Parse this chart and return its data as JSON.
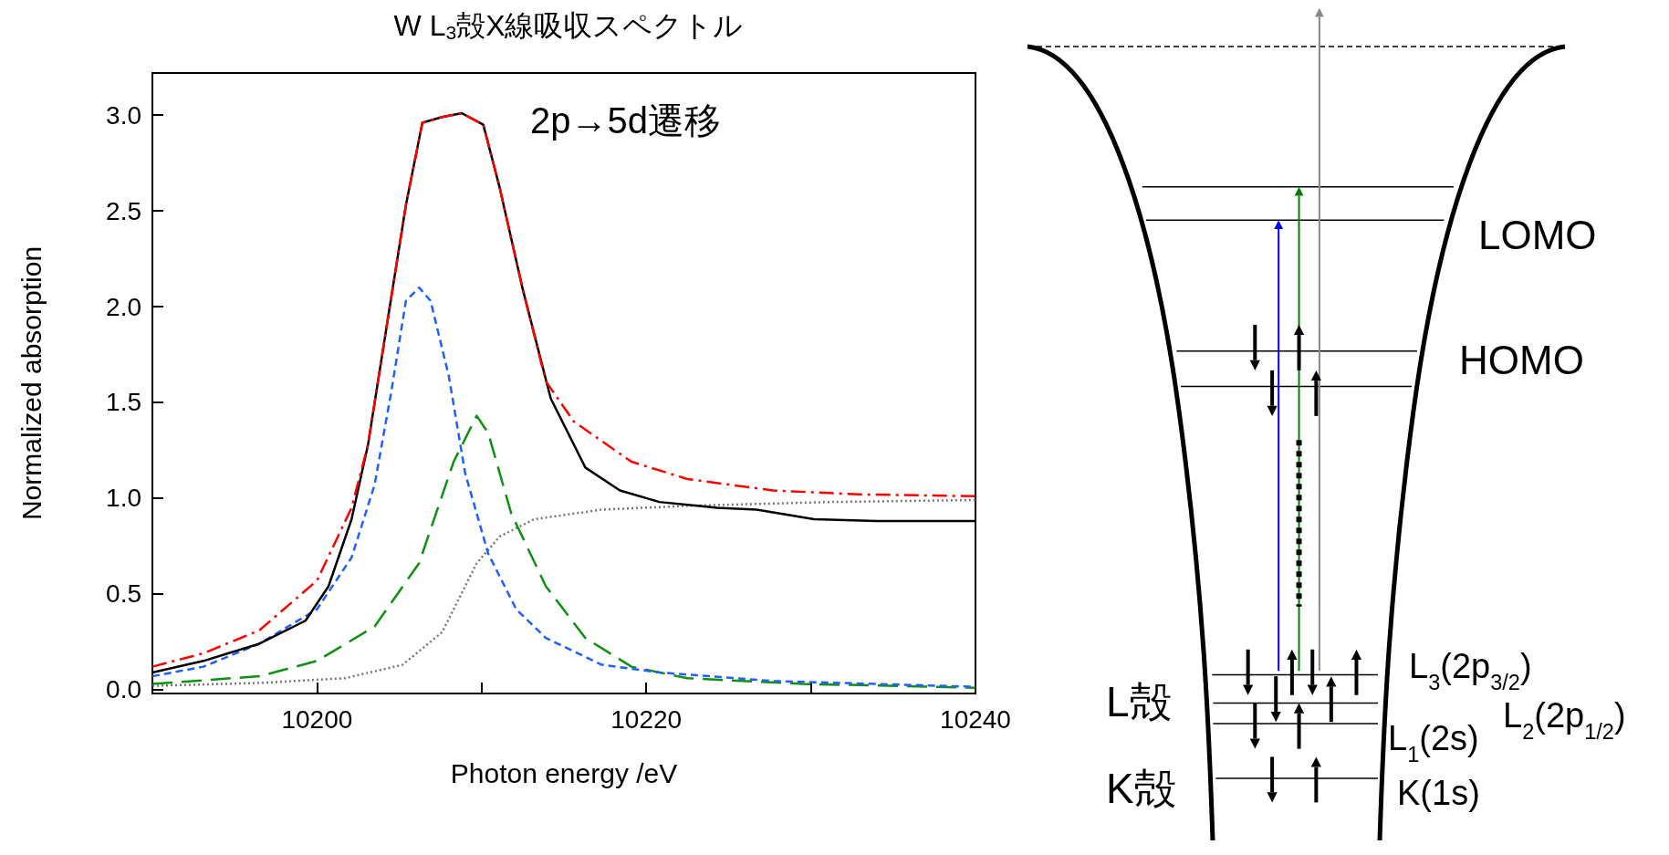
{
  "chart_data": {
    "type": "line",
    "title": "W L$_{3}$殻X線吸収スペクトル",
    "xlabel": "Photon energy /eV",
    "ylabel": "Normalized absorption",
    "xlim": [
      10190,
      10240
    ],
    "xticks": [
      10200,
      {
        "value": 10210,
        "label": null
      },
      10220,
      {
        "value": 10230,
        "label": null
      },
      10240
    ],
    "ylim": [
      -0.02,
      3.22
    ],
    "yticks": [
      {
        "value": 0,
        "label": "0.0"
      },
      0.5,
      {
        "value": 1,
        "label": "1.0"
      },
      1.5,
      {
        "value": 2,
        "label": "2.0"
      },
      2.5,
      {
        "value": 3,
        "label": "3.0"
      }
    ],
    "grid": false,
    "marker": "none",
    "annotations": [
      "2p→5d遷移",
      "LOMO",
      "HOMO",
      "L$_{3}$(2p$_{3/2}$)",
      "L$_{2}$(2p$_{1/2}$)",
      "L$_{1}$(2s)",
      "K(1s)",
      "L殻",
      "K殻"
    ],
    "series": [
      {
        "color": "#777777",
        "line_style": "dotted",
        "x": [
          10190.0,
          10196.5,
          10201.7,
          10205.2,
          10207.6,
          10209.7,
          10211.1,
          10213.2,
          10217.3,
          10222.5,
          10231.2,
          10240
        ],
        "values": [
          0.02,
          0.035,
          0.06,
          0.13,
          0.3,
          0.66,
          0.8,
          0.89,
          0.94,
          0.96,
          0.98,
          0.99
        ]
      },
      {
        "color": "#109010",
        "line_style": "longdash",
        "x": [
          10190.0,
          10196.5,
          10200.0,
          10203.5,
          10206.2,
          10208.3,
          10209.7,
          10210.4,
          10211.8,
          10213.9,
          10216.3,
          10219.1,
          10222.5,
          10229.5,
          10240
        ],
        "values": [
          0.03,
          0.07,
          0.15,
          0.33,
          0.66,
          1.19,
          1.43,
          1.34,
          0.92,
          0.54,
          0.27,
          0.12,
          0.06,
          0.03,
          0.01
        ]
      },
      {
        "color": "#2060ff",
        "line_style": "dashed",
        "x": [
          10190.0,
          10193.1,
          10196.5,
          10200.0,
          10202.1,
          10203.5,
          10204.5,
          10205.4,
          10206.2,
          10206.9,
          10208.0,
          10209.0,
          10210.4,
          10212.1,
          10213.9,
          10217.3,
          10220.8,
          10227.7,
          10240
        ],
        "values": [
          0.07,
          0.12,
          0.24,
          0.42,
          0.69,
          1.07,
          1.55,
          2.03,
          2.1,
          2.03,
          1.64,
          1.13,
          0.71,
          0.42,
          0.27,
          0.13,
          0.09,
          0.045,
          0.015
        ]
      },
      {
        "color": "#000000",
        "line_style": "solid",
        "x": [
          10190.0,
          10193.1,
          10196.5,
          10199.3,
          10200.7,
          10202.1,
          10203.1,
          10204.2,
          10205.4,
          10206.4,
          10207.6,
          10208.8,
          10210.1,
          10211.1,
          10212.5,
          10214.2,
          10216.3,
          10218.4,
          10220.8,
          10224.3,
          10226.7,
          10230.2,
          10234.0,
          10240
        ],
        "values": [
          0.09,
          0.15,
          0.24,
          0.36,
          0.54,
          0.89,
          1.28,
          1.88,
          2.53,
          2.96,
          2.99,
          3.01,
          2.95,
          2.62,
          2.09,
          1.52,
          1.16,
          1.04,
          0.98,
          0.95,
          0.94,
          0.89,
          0.88,
          0.88
        ]
      },
      {
        "color": "#ff0000",
        "line_style": "dashdot",
        "x": [
          10190.0,
          10193.1,
          10196.5,
          10200.0,
          10202.1,
          10203.1,
          10204.2,
          10205.4,
          10206.4,
          10207.6,
          10208.8,
          10210.1,
          10211.1,
          10212.5,
          10213.9,
          10215.6,
          10219.1,
          10222.5,
          10227.7,
          10232.9,
          10240
        ],
        "values": [
          0.12,
          0.19,
          0.31,
          0.57,
          0.95,
          1.28,
          1.88,
          2.53,
          2.96,
          2.99,
          3.01,
          2.95,
          2.62,
          2.09,
          1.61,
          1.4,
          1.19,
          1.1,
          1.04,
          1.02,
          1.01
        ]
      }
    ]
  }
}
